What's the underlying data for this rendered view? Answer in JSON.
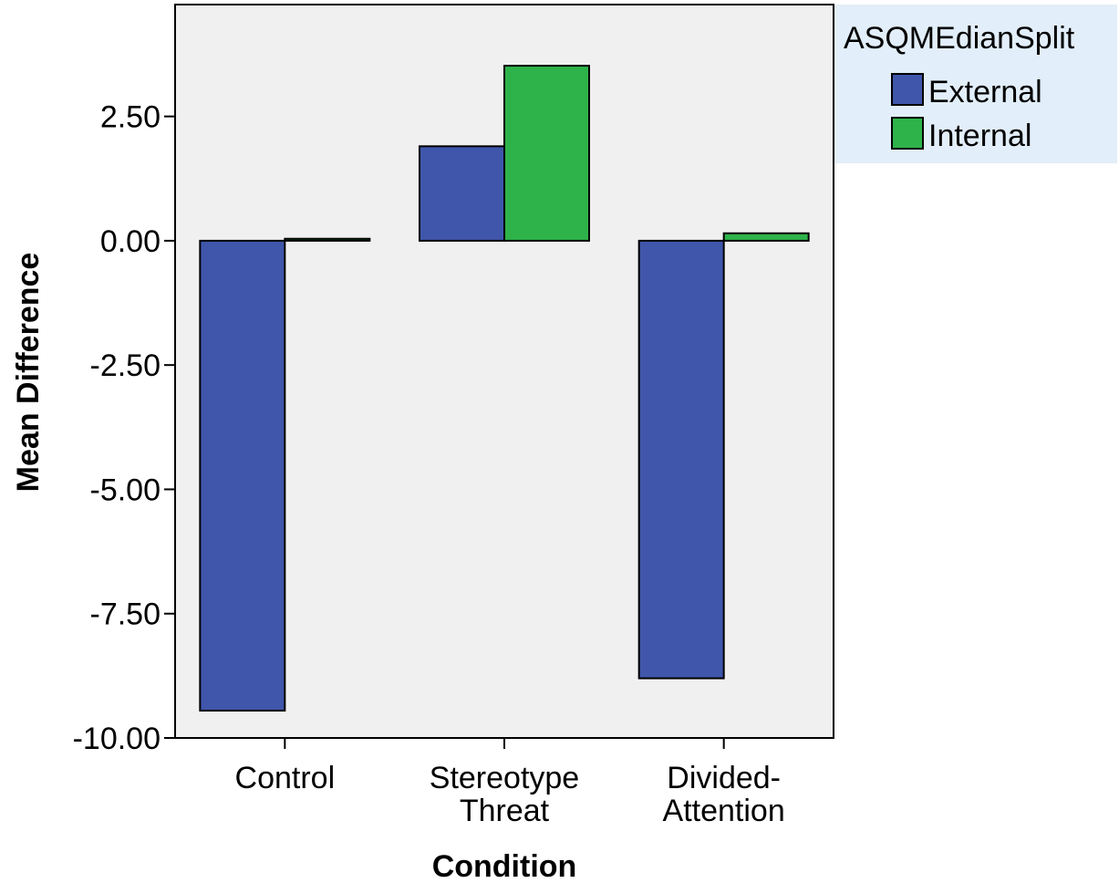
{
  "chart_data": {
    "type": "bar",
    "categories": [
      [
        "Control"
      ],
      [
        "Stereotype",
        "Threat"
      ],
      [
        "Divided-",
        "Attention"
      ]
    ],
    "series": [
      {
        "name": "External",
        "color": "#3f56aa",
        "values": [
          -9.45,
          1.9,
          -8.8
        ]
      },
      {
        "name": "Internal",
        "color": "#2eb34a",
        "values": [
          0.04,
          3.52,
          0.15
        ]
      }
    ],
    "xlabel": "Condition",
    "ylabel": "Mean Difference",
    "ylim": [
      -10.0,
      4.75
    ],
    "yticks": [
      "2.50",
      "0.00",
      "-2.50",
      "-5.00",
      "-7.50",
      "-10.00"
    ],
    "ytick_values": [
      2.5,
      0.0,
      -2.5,
      -5.0,
      -7.5,
      -10.0
    ],
    "legend": {
      "title": "ASQMEdianSplit",
      "placement": "top-right"
    },
    "plot_background": "#f0f0f0",
    "legend_background": "#e2eef9",
    "grid": false
  }
}
